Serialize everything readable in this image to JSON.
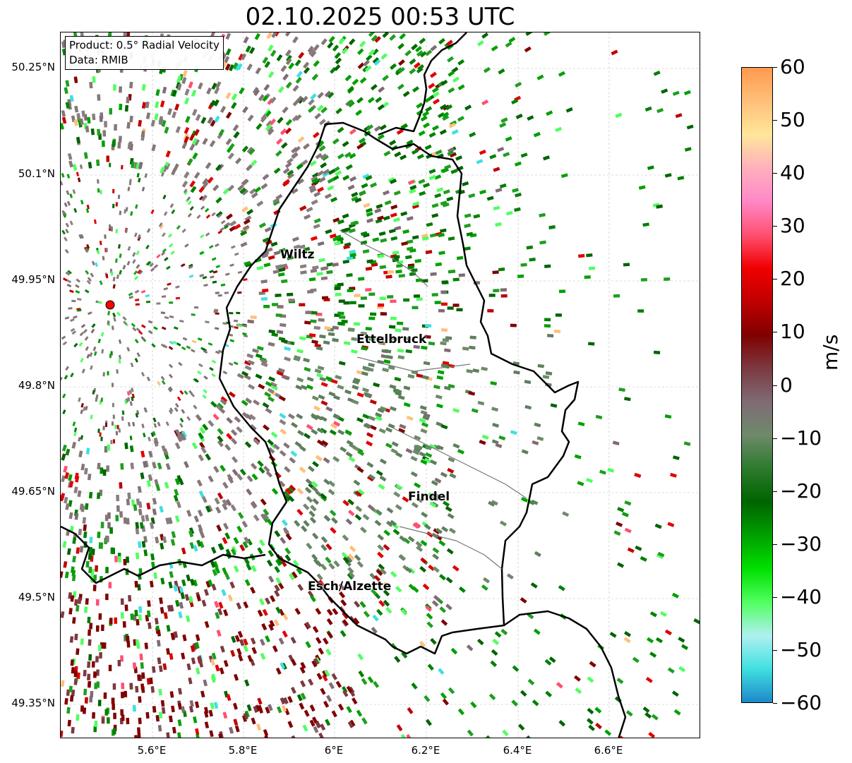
{
  "title": "02.10.2025 00:53 UTC",
  "info": {
    "product": "Product: 0.5° Radial Velocity",
    "data": "Data: RMIB"
  },
  "axes": {
    "lat_ticks": [
      "50.25°N",
      "50.1°N",
      "49.95°N",
      "49.8°N",
      "49.65°N",
      "49.5°N",
      "49.35°N"
    ],
    "lon_ticks": [
      "5.6°E",
      "5.8°E",
      "6°E",
      "6.2°E",
      "6.4°E",
      "6.6°E"
    ]
  },
  "cities": [
    {
      "name": "Wiltz"
    },
    {
      "name": "Ettelbruck"
    },
    {
      "name": "Findel"
    },
    {
      "name": "Esch/Alzette"
    }
  ],
  "colorbar": {
    "label": "m/s",
    "ticks": [
      "60",
      "50",
      "40",
      "30",
      "20",
      "10",
      "0",
      "−10",
      "−20",
      "−30",
      "−40",
      "−50",
      "−60"
    ],
    "min": -60,
    "max": 60,
    "colors": [
      "#ff9a4e",
      "#ffbf7a",
      "#ffe79a",
      "#ffb0bc",
      "#ff88c8",
      "#ff5070",
      "#f00000",
      "#c00000",
      "#800000",
      "#7b3a40",
      "#806b75",
      "#6e8a6a",
      "#2d7a2d",
      "#006400",
      "#00a000",
      "#00e000",
      "#50ff60",
      "#b0f0f0",
      "#40e0e0",
      "#1e88c8"
    ]
  },
  "radar_site_color": "#ff0000"
}
